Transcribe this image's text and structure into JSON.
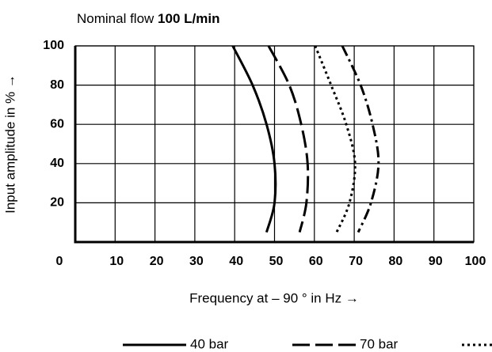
{
  "chart_data": {
    "type": "line",
    "title": "Nominal flow",
    "title_emphasis": "100 L/min",
    "x_label": "Frequency at – 90 ° in Hz →",
    "y_label": "Input amplitude in % →",
    "xlim": [
      0,
      100
    ],
    "xticks": [
      0,
      10,
      20,
      30,
      40,
      50,
      60,
      70,
      80,
      90,
      100
    ],
    "ylim": [
      0,
      100
    ],
    "yticks": [
      20,
      40,
      60,
      80,
      100
    ],
    "grid": true,
    "legend": "bottom",
    "series": [
      {
        "name": "40 bar",
        "color": "#000000",
        "dash": "solid",
        "x": [
          39.5,
          44.5,
          48,
          50,
          50,
          48
        ],
        "values": [
          100,
          80,
          60,
          40,
          20,
          5
        ]
      },
      {
        "name": "70 bar",
        "color": "#000000",
        "dash": "dashed",
        "x": [
          48.5,
          53.7,
          56.7,
          58.3,
          58,
          56.3
        ],
        "values": [
          100,
          80,
          60,
          40,
          20,
          5
        ]
      },
      {
        "color": "#000000",
        "dash": "dotted",
        "x": [
          60.2,
          64.2,
          68,
          70.2,
          68.8,
          65.6
        ],
        "values": [
          100,
          80,
          60,
          40,
          20,
          5
        ]
      },
      {
        "color": "#000000",
        "dash": "dashdot",
        "x": [
          67,
          71.6,
          74.6,
          76.1,
          74.2,
          71
        ],
        "values": [
          100,
          80,
          60,
          40,
          20,
          5
        ]
      }
    ]
  }
}
